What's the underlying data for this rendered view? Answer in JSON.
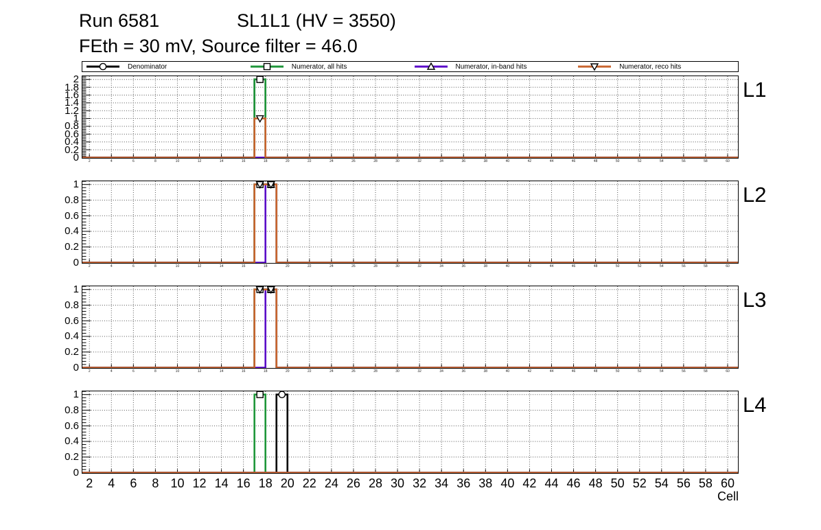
{
  "title": {
    "run": "Run 6581",
    "condition": "SL1L1 (HV = 3550)",
    "subtitle": "FEth = 30 mV, Source filter = 46.0"
  },
  "legend": [
    {
      "label": "Denominator",
      "color": "#000000",
      "marker": "circle"
    },
    {
      "label": "Numerator, all hits",
      "color": "#1e9639",
      "marker": "square"
    },
    {
      "label": "Numerator, in-band hits",
      "color": "#5a0ac8",
      "marker": "triangle-up"
    },
    {
      "label": "Numerator, reco hits",
      "color": "#c8642d",
      "marker": "triangle-down"
    }
  ],
  "chart_data": {
    "type": "line",
    "subtype": "step-histogram-efficiency",
    "xlabel": "Cell",
    "x_range": [
      1.3,
      61.0
    ],
    "x_ticks": [
      2,
      4,
      6,
      8,
      10,
      12,
      14,
      16,
      18,
      20,
      22,
      24,
      26,
      28,
      30,
      32,
      34,
      36,
      38,
      40,
      42,
      44,
      46,
      48,
      50,
      52,
      54,
      56,
      58,
      60
    ],
    "grid": true,
    "panels": [
      {
        "label": "L1",
        "ylim": [
          0,
          2.1
        ],
        "y_ticks": [
          0,
          0.2,
          0.4,
          0.6,
          0.8,
          1,
          1.2,
          1.4,
          1.6,
          1.8,
          2
        ],
        "series": [
          {
            "name": "Denominator",
            "bins": [
              [
                17,
                18,
                2
              ]
            ],
            "markers": [
              [
                17.5,
                2
              ]
            ]
          },
          {
            "name": "Numerator, all hits",
            "bins": [
              [
                17,
                18,
                2
              ]
            ],
            "markers": [
              [
                17.5,
                2
              ]
            ]
          },
          {
            "name": "Numerator, in-band hits",
            "bins": [],
            "markers": []
          },
          {
            "name": "Numerator, reco hits",
            "bins": [
              [
                17,
                18,
                1
              ]
            ],
            "markers": [
              [
                17.5,
                1
              ]
            ]
          }
        ]
      },
      {
        "label": "L2",
        "ylim": [
          0,
          1.05
        ],
        "y_ticks": [
          0,
          0.2,
          0.4,
          0.6,
          0.8,
          1
        ],
        "series": [
          {
            "name": "Denominator",
            "bins": [
              [
                17,
                18,
                1
              ],
              [
                18,
                19,
                1
              ]
            ],
            "markers": [
              [
                17.5,
                1
              ],
              [
                18.5,
                1
              ]
            ]
          },
          {
            "name": "Numerator, all hits",
            "bins": [
              [
                17,
                18,
                1
              ],
              [
                18,
                19,
                1
              ]
            ],
            "markers": [
              [
                17.5,
                1
              ],
              [
                18.5,
                1
              ]
            ]
          },
          {
            "name": "Numerator, in-band hits",
            "bins": [
              [
                18,
                19,
                1
              ]
            ],
            "markers": [
              [
                18.5,
                1
              ]
            ]
          },
          {
            "name": "Numerator, reco hits",
            "bins": [
              [
                17,
                18,
                1
              ],
              [
                18,
                19,
                1
              ]
            ],
            "markers": [
              [
                17.5,
                1
              ],
              [
                18.5,
                1
              ]
            ]
          }
        ]
      },
      {
        "label": "L3",
        "ylim": [
          0,
          1.05
        ],
        "y_ticks": [
          0,
          0.2,
          0.4,
          0.6,
          0.8,
          1
        ],
        "series": [
          {
            "name": "Denominator",
            "bins": [
              [
                17,
                18,
                1
              ],
              [
                18,
                19,
                1
              ]
            ],
            "markers": [
              [
                17.5,
                1
              ],
              [
                18.5,
                1
              ]
            ]
          },
          {
            "name": "Numerator, all hits",
            "bins": [
              [
                17,
                18,
                1
              ],
              [
                18,
                19,
                1
              ]
            ],
            "markers": [
              [
                17.5,
                1
              ],
              [
                18.5,
                1
              ]
            ]
          },
          {
            "name": "Numerator, in-band hits",
            "bins": [
              [
                18,
                19,
                1
              ]
            ],
            "markers": [
              [
                18.5,
                1
              ]
            ]
          },
          {
            "name": "Numerator, reco hits",
            "bins": [
              [
                17,
                18,
                1
              ],
              [
                18,
                19,
                1
              ]
            ],
            "markers": [
              [
                17.5,
                1
              ],
              [
                18.5,
                1
              ]
            ]
          }
        ]
      },
      {
        "label": "L4",
        "ylim": [
          0,
          1.05
        ],
        "y_ticks": [
          0,
          0.2,
          0.4,
          0.6,
          0.8,
          1
        ],
        "series": [
          {
            "name": "Denominator",
            "bins": [
              [
                19,
                20,
                1
              ]
            ],
            "markers": [
              [
                19.5,
                1
              ]
            ]
          },
          {
            "name": "Numerator, all hits",
            "bins": [
              [
                17,
                18,
                1
              ]
            ],
            "markers": [
              [
                17.5,
                1
              ]
            ]
          },
          {
            "name": "Numerator, in-band hits",
            "bins": [],
            "markers": []
          },
          {
            "name": "Numerator, reco hits",
            "bins": [],
            "markers": []
          }
        ]
      }
    ]
  }
}
